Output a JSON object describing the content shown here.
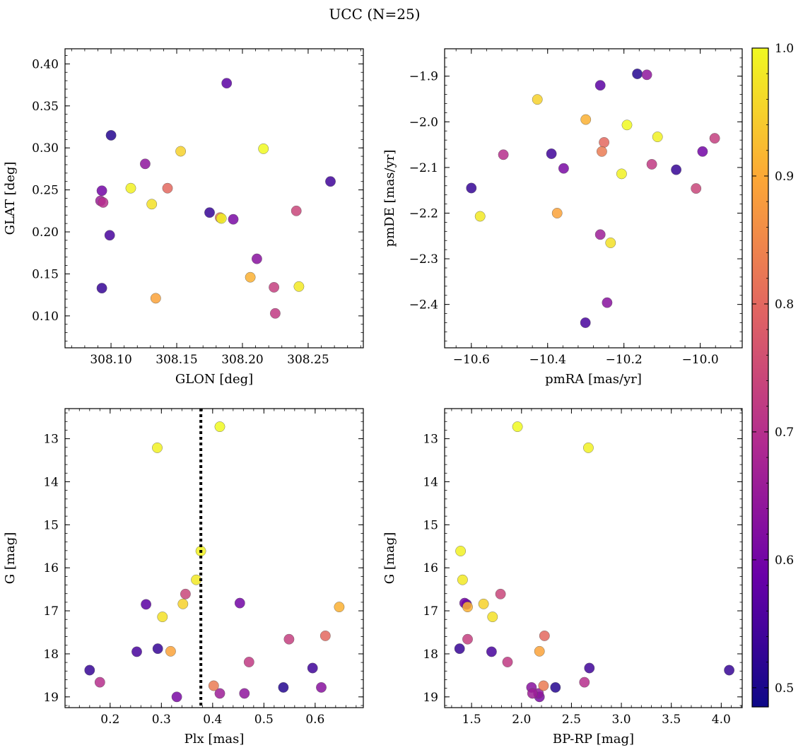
{
  "title": "UCC (N=25)",
  "colorbar": {
    "min": 0.485,
    "max": 1.0,
    "ticks": [
      0.5,
      0.6,
      0.7,
      0.8,
      0.9,
      1.0
    ],
    "tick_labels": [
      "0.5",
      "0.6",
      "0.7",
      "0.8",
      "0.9",
      "1.0"
    ],
    "colormap": "plasma",
    "colors": [
      "#0d0887",
      "#6a00a8",
      "#b12a90",
      "#e16462",
      "#fca636",
      "#f0f921"
    ]
  },
  "vline": {
    "panel": 2,
    "x": 0.377,
    "style": "dotted",
    "color": "#000000"
  },
  "stars": [
    {
      "glon": 308.093,
      "glat": 0.133,
      "pmra": -10.6,
      "pmde": -2.145,
      "plx": 0.16,
      "g": 18.38,
      "bprp": 4.08,
      "p": 0.53
    },
    {
      "glon": 308.1,
      "glat": 0.315,
      "pmra": -10.165,
      "pmde": -1.895,
      "plx": 0.538,
      "g": 18.78,
      "bprp": 2.34,
      "p": 0.51
    },
    {
      "glon": 308.175,
      "glat": 0.223,
      "pmra": -10.063,
      "pmde": -2.105,
      "plx": 0.293,
      "g": 17.88,
      "bprp": 1.38,
      "p": 0.53
    },
    {
      "glon": 308.267,
      "glat": 0.26,
      "pmra": -10.39,
      "pmde": -2.07,
      "plx": 0.595,
      "g": 18.33,
      "bprp": 2.68,
      "p": 0.54
    },
    {
      "glon": 308.099,
      "glat": 0.196,
      "pmra": -10.301,
      "pmde": -2.44,
      "plx": 0.252,
      "g": 17.95,
      "bprp": 1.7,
      "p": 0.55
    },
    {
      "glon": 308.188,
      "glat": 0.377,
      "pmra": -10.262,
      "pmde": -1.92,
      "plx": 0.27,
      "g": 16.85,
      "bprp": 1.45,
      "p": 0.57
    },
    {
      "glon": 308.093,
      "glat": 0.249,
      "pmra": -9.994,
      "pmde": -2.065,
      "plx": 0.453,
      "g": 16.82,
      "bprp": 1.43,
      "p": 0.6
    },
    {
      "glon": 308.193,
      "glat": 0.215,
      "pmra": -10.358,
      "pmde": -2.102,
      "plx": 0.33,
      "g": 19.0,
      "bprp": 2.18,
      "p": 0.61
    },
    {
      "glon": 308.211,
      "glat": 0.168,
      "pmra": -10.244,
      "pmde": -2.396,
      "plx": 0.612,
      "g": 18.78,
      "bprp": 2.1,
      "p": 0.63
    },
    {
      "glon": 308.126,
      "glat": 0.281,
      "pmra": -10.14,
      "pmde": -1.897,
      "plx": 0.462,
      "g": 18.92,
      "bprp": 2.17,
      "p": 0.64
    },
    {
      "glon": 308.092,
      "glat": 0.237,
      "pmra": -10.262,
      "pmde": -2.247,
      "plx": 0.414,
      "g": 18.92,
      "bprp": 2.11,
      "p": 0.66
    },
    {
      "glon": 308.094,
      "glat": 0.235,
      "pmra": -10.516,
      "pmde": -2.072,
      "plx": 0.18,
      "g": 18.66,
      "bprp": 2.63,
      "p": 0.7
    },
    {
      "glon": 308.225,
      "glat": 0.103,
      "pmra": -10.127,
      "pmde": -2.093,
      "plx": 0.471,
      "g": 18.19,
      "bprp": 1.86,
      "p": 0.72
    },
    {
      "glon": 308.224,
      "glat": 0.134,
      "pmra": -9.962,
      "pmde": -2.036,
      "plx": 0.549,
      "g": 17.66,
      "bprp": 1.46,
      "p": 0.73
    },
    {
      "glon": 308.241,
      "glat": 0.225,
      "pmra": -10.011,
      "pmde": -2.146,
      "plx": 0.347,
      "g": 16.61,
      "bprp": 1.79,
      "p": 0.74
    },
    {
      "glon": 308.143,
      "glat": 0.252,
      "pmra": -10.252,
      "pmde": -2.045,
      "plx": 0.62,
      "g": 17.58,
      "bprp": 2.23,
      "p": 0.8
    },
    {
      "glon": 308.183,
      "glat": 0.217,
      "pmra": -10.258,
      "pmde": -2.065,
      "plx": 0.402,
      "g": 18.74,
      "bprp": 2.22,
      "p": 0.83
    },
    {
      "glon": 308.134,
      "glat": 0.121,
      "pmra": -10.375,
      "pmde": -2.2,
      "plx": 0.318,
      "g": 17.94,
      "bprp": 2.18,
      "p": 0.89
    },
    {
      "glon": 308.206,
      "glat": 0.146,
      "pmra": -10.3,
      "pmde": -1.995,
      "plx": 0.647,
      "g": 16.91,
      "bprp": 1.46,
      "p": 0.91
    },
    {
      "glon": 308.153,
      "glat": 0.296,
      "pmra": -10.427,
      "pmde": -1.951,
      "plx": 0.342,
      "g": 16.84,
      "bprp": 1.62,
      "p": 0.95
    },
    {
      "glon": 308.131,
      "glat": 0.233,
      "pmra": -10.235,
      "pmde": -2.265,
      "plx": 0.302,
      "g": 17.14,
      "bprp": 1.71,
      "p": 0.97
    },
    {
      "glon": 308.243,
      "glat": 0.135,
      "pmra": -10.577,
      "pmde": -2.207,
      "plx": 0.368,
      "g": 16.28,
      "bprp": 1.41,
      "p": 0.98
    },
    {
      "glon": 308.184,
      "glat": 0.216,
      "pmra": -10.206,
      "pmde": -2.114,
      "plx": 0.377,
      "g": 15.61,
      "bprp": 1.39,
      "p": 0.99
    },
    {
      "glon": 308.115,
      "glat": 0.252,
      "pmra": -10.112,
      "pmde": -2.033,
      "plx": 0.292,
      "g": 13.21,
      "bprp": 2.67,
      "p": 0.99
    },
    {
      "glon": 308.216,
      "glat": 0.299,
      "pmra": -10.192,
      "pmde": -2.007,
      "plx": 0.414,
      "g": 12.72,
      "bprp": 1.96,
      "p": 1.0
    }
  ],
  "chart_data": [
    {
      "type": "scatter",
      "panel": "top-left",
      "title": "UCC (N=25)",
      "xlabel": "GLON [deg]",
      "ylabel": "GLAT [deg]",
      "x_field": "glon",
      "y_field": "glat",
      "xlim": [
        308.065,
        308.292
      ],
      "ylim": [
        0.062,
        0.418
      ],
      "y_inverted": false,
      "xticks": [
        308.1,
        308.15,
        308.2,
        308.25
      ],
      "xtick_labels": [
        "308.10",
        "308.15",
        "308.20",
        "308.25"
      ],
      "yticks": [
        0.1,
        0.15,
        0.2,
        0.25,
        0.3,
        0.35,
        0.4
      ],
      "ytick_labels": [
        "0.10",
        "0.15",
        "0.20",
        "0.25",
        "0.30",
        "0.35",
        "0.40"
      ]
    },
    {
      "type": "scatter",
      "panel": "top-right",
      "xlabel": "pmRA [mas/yr]",
      "ylabel": "pmDE [mas/yr]",
      "x_field": "pmra",
      "y_field": "pmde",
      "xlim": [
        -10.67,
        -9.89
      ],
      "ylim": [
        -2.495,
        -1.84
      ],
      "y_inverted": false,
      "xticks": [
        -10.6,
        -10.4,
        -10.2,
        -10.0
      ],
      "xtick_labels": [
        "−10.6",
        "−10.4",
        "−10.2",
        "−10.0"
      ],
      "yticks": [
        -2.4,
        -2.3,
        -2.2,
        -2.1,
        -2.0,
        -1.9
      ],
      "ytick_labels": [
        "−2.4",
        "−2.3",
        "−2.2",
        "−2.1",
        "−2.0",
        "−1.9"
      ]
    },
    {
      "type": "scatter",
      "panel": "bottom-left",
      "xlabel": "Plx [mas]",
      "ylabel": "G [mag]",
      "x_field": "plx",
      "y_field": "g",
      "xlim": [
        0.112,
        0.694
      ],
      "ylim": [
        12.3,
        19.25
      ],
      "y_inverted": true,
      "xticks": [
        0.2,
        0.3,
        0.4,
        0.5,
        0.6
      ],
      "xtick_labels": [
        "0.2",
        "0.3",
        "0.4",
        "0.5",
        "0.6"
      ],
      "yticks": [
        13,
        14,
        15,
        16,
        17,
        18,
        19
      ],
      "ytick_labels": [
        "13",
        "14",
        "15",
        "16",
        "17",
        "18",
        "19"
      ]
    },
    {
      "type": "scatter",
      "panel": "bottom-right",
      "xlabel": "BP-RP [mag]",
      "ylabel": "G [mag]",
      "x_field": "bprp",
      "y_field": "g",
      "xlim": [
        1.23,
        4.21
      ],
      "ylim": [
        12.3,
        19.25
      ],
      "y_inverted": true,
      "xticks": [
        1.5,
        2.0,
        2.5,
        3.0,
        3.5,
        4.0
      ],
      "xtick_labels": [
        "1.5",
        "2.0",
        "2.5",
        "3.0",
        "3.5",
        "4.0"
      ],
      "yticks": [
        13,
        14,
        15,
        16,
        17,
        18,
        19
      ],
      "ytick_labels": [
        "13",
        "14",
        "15",
        "16",
        "17",
        "18",
        "19"
      ]
    }
  ]
}
